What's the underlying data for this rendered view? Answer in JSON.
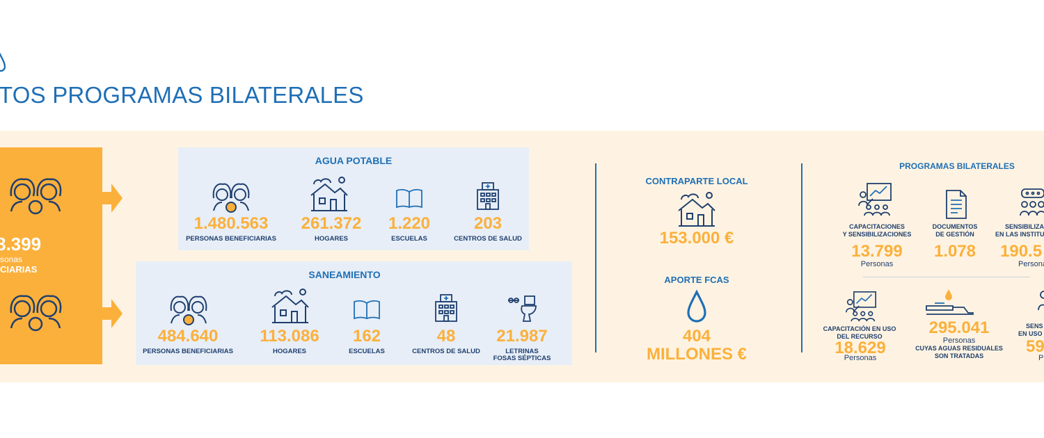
{
  "header": {
    "title": "TOS PROGRAMAS BILATERALES",
    "drop_icon": "water-drop-icon"
  },
  "colors": {
    "accent_blue": "#1f6fb5",
    "dark_blue": "#1f3f6e",
    "orange": "#fbb03b",
    "band": "#fef3e2",
    "panel": "#e7eef7"
  },
  "left_box": {
    "total_value": "8.399",
    "total_unit": "sonas",
    "total_label": "CIARIAS"
  },
  "agua_potable": {
    "title": "AGUA POTABLE",
    "items": [
      {
        "icon": "people-icon",
        "value": "1.480.563",
        "label": "PERSONAS BENEFICIARIAS"
      },
      {
        "icon": "house-icon",
        "value": "261.372",
        "label": "HOGARES"
      },
      {
        "icon": "book-icon",
        "value": "1.220",
        "label": "ESCUELAS"
      },
      {
        "icon": "hospital-icon",
        "value": "203",
        "label": "CENTROS DE SALUD"
      }
    ]
  },
  "saneamiento": {
    "title": "SANEAMIENTO",
    "items": [
      {
        "icon": "people-icon",
        "value": "484.640",
        "label": "PERSONAS BENEFICIARIAS"
      },
      {
        "icon": "house-icon",
        "value": "113.086",
        "label": "HOGARES"
      },
      {
        "icon": "book-icon",
        "value": "162",
        "label": "ESCUELAS"
      },
      {
        "icon": "hospital-icon",
        "value": "48",
        "label": "CENTROS DE SALUD"
      },
      {
        "icon": "toilet-icon",
        "value": "21.987",
        "label": "LETRINAS",
        "label2": "FOSAS SÉPTICAS"
      }
    ]
  },
  "funding": {
    "contraparte_title": "CONTRAPARTE LOCAL",
    "contraparte_value": "153.000 €",
    "aporte_title": "APORTE FCAS",
    "aporte_value": "404",
    "aporte_unit": "MILLONES €"
  },
  "programas": {
    "title": "PROGRAMAS BILATERALES",
    "row1": [
      {
        "icon": "presentation-icon",
        "label": "CAPACITACIONES",
        "label2": "Y SENSIBILIZACIONES",
        "value": "13.799",
        "sub": "Personas"
      },
      {
        "icon": "document-icon",
        "label": "DOCUMENTOS",
        "label2": "DE GESTIÓN",
        "value": "1.078",
        "sub": ""
      },
      {
        "icon": "group-chat-icon",
        "label": "SENSIBILIZA",
        "label2": "EN LAS INSTITU",
        "value": "190.5",
        "sub": "Persona"
      }
    ],
    "row2": [
      {
        "icon": "presentation-icon",
        "label": "CAPACITACIÓN EN USO",
        "label2": "DEL RECURSO",
        "value": "18.629",
        "sub": "Personas"
      },
      {
        "icon": "treatment-plant-icon",
        "label": "",
        "label2": "",
        "value": "295.041",
        "sub": "Personas",
        "sub2": "CUYAS AGUAS RESIDUALES",
        "sub3": "SON TRATADAS"
      },
      {
        "icon": "person-icon",
        "label": "SENS",
        "label2": "EN USO",
        "value": "59",
        "sub": "P"
      }
    ]
  }
}
